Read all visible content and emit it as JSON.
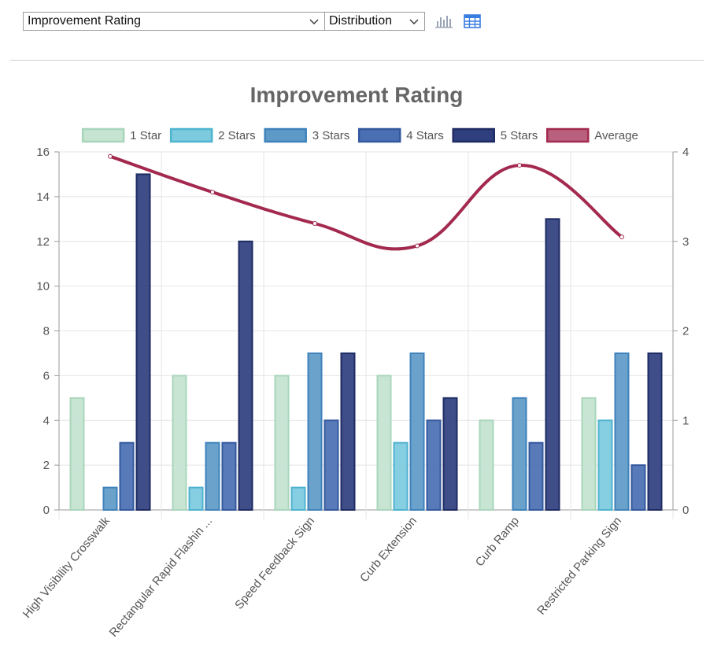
{
  "toolbar": {
    "metric_value": "Improvement Rating",
    "view_value": "Distribution",
    "chart_view_icon": "bar-chart-icon",
    "table_view_icon": "table-icon"
  },
  "colors": {
    "one_star": "#c5e4d2",
    "two_stars": "#7ccade",
    "three_stars": "#5d9ac8",
    "four_stars": "#4a6fb3",
    "five_stars": "#2f3f7e",
    "average": "#a3294f",
    "grid": "#e4e4e4",
    "axis_text": "#555555",
    "title_text": "#666666"
  },
  "chart_data": {
    "type": "bar",
    "title": "Improvement Rating",
    "categories": [
      "High Visibility Crosswalk",
      "Rectangular Rapid Flashin ...",
      "Speed Feedback Sign",
      "Curb Extension",
      "Curb Ramp",
      "Restricted Parking Sign"
    ],
    "series": [
      {
        "name": "1 Star",
        "values": [
          5,
          6,
          6,
          6,
          4,
          5
        ]
      },
      {
        "name": "2 Stars",
        "values": [
          0,
          1,
          1,
          3,
          0,
          4
        ]
      },
      {
        "name": "3 Stars",
        "values": [
          1,
          3,
          7,
          7,
          5,
          7
        ]
      },
      {
        "name": "4 Stars",
        "values": [
          3,
          3,
          4,
          4,
          3,
          2
        ]
      },
      {
        "name": "5 Stars",
        "values": [
          15,
          12,
          7,
          5,
          13,
          7
        ]
      }
    ],
    "line_series": {
      "name": "Average",
      "axis": "right",
      "values": [
        3.95,
        3.55,
        3.2,
        2.95,
        3.85,
        3.05
      ]
    },
    "legend_position": "top",
    "ylim": [
      0,
      16
    ],
    "yticks": [
      0,
      2,
      4,
      6,
      8,
      10,
      12,
      14,
      16
    ],
    "y2lim": [
      0,
      4
    ],
    "y2ticks": [
      0,
      1,
      2,
      3,
      4
    ],
    "xlabel": "",
    "ylabel": "",
    "grid": true
  }
}
